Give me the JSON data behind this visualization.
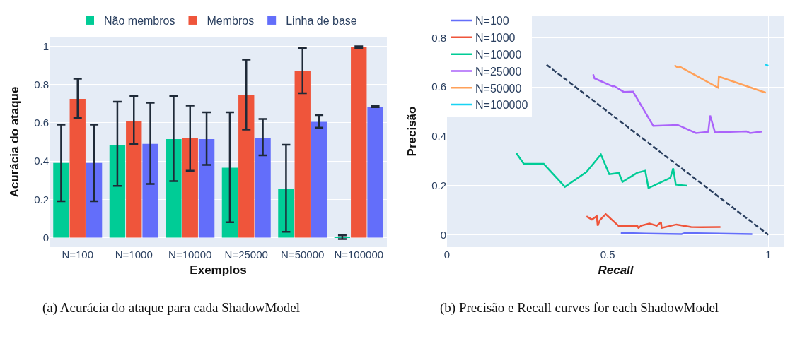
{
  "chart_data": [
    {
      "type": "bar",
      "xlabel": "Exemplos",
      "ylabel": "Acurácia do ataque",
      "categories": [
        "N=100",
        "N=1000",
        "N=10000",
        "N=25000",
        "N=50000",
        "N=100000"
      ],
      "series": [
        {
          "name": "Não membros",
          "color": "#00cc96",
          "values": [
            0.39,
            0.485,
            0.515,
            0.365,
            0.255,
            0.002
          ],
          "errors": [
            [
              0.19,
              0.59
            ],
            [
              0.27,
              0.71
            ],
            [
              0.295,
              0.74
            ],
            [
              0.08,
              0.655
            ],
            [
              0.03,
              0.485
            ],
            0.01
          ]
        },
        {
          "name": "Membros",
          "color": "#ef553b",
          "values": [
            0.725,
            0.61,
            0.52,
            0.745,
            0.87,
            0.995
          ],
          "errors": [
            [
              0.625,
              0.83
            ],
            [
              0.49,
              0.74
            ],
            [
              0.35,
              0.69
            ],
            [
              0.565,
              0.93
            ],
            [
              0.755,
              0.99
            ],
            0.005
          ]
        },
        {
          "name": "Linha de base",
          "color": "#636efa",
          "values": [
            0.39,
            0.49,
            0.515,
            0.52,
            0.605,
            0.685
          ],
          "errors": [
            [
              0.19,
              0.59
            ],
            [
              0.28,
              0.705
            ],
            [
              0.38,
              0.655
            ],
            [
              0.43,
              0.62
            ],
            [
              0.575,
              0.64
            ],
            0.003
          ]
        }
      ],
      "ylim": [
        -0.05,
        1.05
      ],
      "yticks": [
        0,
        0.2,
        0.4,
        0.6,
        0.8,
        1
      ],
      "grid": "y",
      "legend": "top",
      "annotations": [
        "(a) Acurácia do ataque para cada ShadowModel"
      ]
    },
    {
      "type": "line",
      "xlabel": "Recall",
      "ylabel": "Precisão",
      "series": [
        {
          "name": "N=100",
          "color": "#636efa",
          "x": [
            0.541,
            0.62,
            0.73,
            0.74,
            0.95
          ],
          "values": [
            0.008,
            0.005,
            0.003,
            0.007,
            0.003
          ]
        },
        {
          "name": "N=1000",
          "color": "#ef553b",
          "x": [
            0.434,
            0.451,
            0.466,
            0.469,
            0.476,
            0.494,
            0.535,
            0.592,
            0.596,
            0.604,
            0.63,
            0.653,
            0.666,
            0.668,
            0.714,
            0.76,
            0.79,
            0.851
          ],
          "values": [
            0.075,
            0.062,
            0.076,
            0.037,
            0.06,
            0.084,
            0.035,
            0.037,
            0.028,
            0.037,
            0.046,
            0.037,
            0.051,
            0.028,
            0.042,
            0.032,
            0.031,
            0.032
          ]
        },
        {
          "name": "N=10000",
          "color": "#00cc96",
          "x": [
            0.216,
            0.239,
            0.301,
            0.367,
            0.434,
            0.479,
            0.505,
            0.535,
            0.546,
            0.592,
            0.617,
            0.627,
            0.695,
            0.704,
            0.712,
            0.748
          ],
          "values": [
            0.331,
            0.288,
            0.288,
            0.195,
            0.255,
            0.326,
            0.246,
            0.251,
            0.215,
            0.252,
            0.26,
            0.19,
            0.231,
            0.27,
            0.204,
            0.199
          ]
        },
        {
          "name": "N=25000",
          "color": "#ab63fa",
          "x": [
            0.455,
            0.459,
            0.516,
            0.52,
            0.55,
            0.579,
            0.642,
            0.718,
            0.775,
            0.813,
            0.819,
            0.834,
            0.932,
            0.943,
            0.981
          ],
          "values": [
            0.651,
            0.635,
            0.602,
            0.604,
            0.58,
            0.581,
            0.442,
            0.446,
            0.413,
            0.418,
            0.484,
            0.416,
            0.42,
            0.413,
            0.419
          ]
        },
        {
          "name": "N=50000",
          "color": "#ffa15a",
          "x": [
            0.708,
            0.718,
            0.726,
            0.844,
            0.846,
            0.992
          ],
          "values": [
            0.688,
            0.679,
            0.681,
            0.597,
            0.642,
            0.577
          ]
        },
        {
          "name": "N=100000",
          "color": "#19d3f3",
          "x": [
            0.99,
            1.0
          ],
          "values": [
            0.692,
            0.686
          ]
        },
        {
          "color": "#2a3f5f",
          "line_style": "dashed",
          "x": [
            0.31,
            1
          ],
          "values": [
            0.69,
            0
          ]
        }
      ],
      "xlim": [
        0,
        1.05
      ],
      "xticks": [
        0,
        0.5,
        1
      ],
      "ylim": [
        -0.05,
        0.89
      ],
      "yticks": [
        0,
        0.2,
        0.4,
        0.6,
        0.8
      ],
      "grid": true,
      "legend": "top left",
      "annotations": [
        "(b) Precisão e Recall curves for each ShadowModel"
      ]
    }
  ]
}
